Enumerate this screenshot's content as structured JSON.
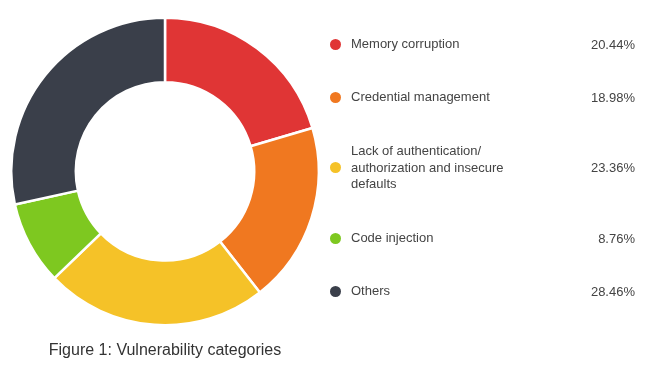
{
  "chart_data": {
    "type": "doughnut",
    "title": "Figure 1: Vulnerability categories",
    "categories": [
      "Memory corruption",
      "Credential management",
      "Lack of authentication/\nauthorization and insecure\ndefaults",
      "Code injection",
      "Others"
    ],
    "values": [
      20.44,
      18.98,
      23.36,
      8.76,
      28.46
    ],
    "value_labels": [
      "20.44%",
      "18.98%",
      "23.36%",
      "8.76%",
      "28.46%"
    ],
    "colors": [
      "#e03535",
      "#f07820",
      "#f5c228",
      "#7ec820",
      "#3a3f4a"
    ],
    "legend": "right"
  }
}
